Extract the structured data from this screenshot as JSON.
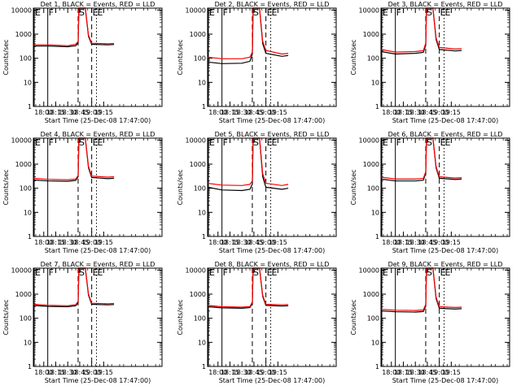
{
  "colors": {
    "events": "#000000",
    "lld": "#ff0000",
    "background": "#ffffff"
  },
  "chart_data": [
    {
      "type": "line",
      "title": "Det 1, BLACK = Events, RED = LLD",
      "xlabel": "Start Time (25-Dec-08 17:47:00)",
      "ylabel": "Counts/sec",
      "yscale": "log",
      "ylim": [
        1,
        12000
      ],
      "xlim_minutes_after_start": [
        0,
        161
      ],
      "xticks": [
        "18:00",
        "18:15",
        "18:30",
        "18:45",
        "19:00",
        "19:15"
      ],
      "yticks": [
        "1",
        "10",
        "100",
        "1000",
        "10000"
      ],
      "markers": [
        {
          "label": "E",
          "style": "solid",
          "time": "17:48"
        },
        {
          "label": "F",
          "style": "solid",
          "time": "18:05"
        },
        {
          "label": "S",
          "style": "dashed",
          "time": "18:43"
        },
        {
          "label": "E",
          "style": "dashed",
          "time": "19:00"
        },
        {
          "label": "E",
          "style": "dotted",
          "time": "19:06"
        }
      ],
      "series": [
        {
          "name": "Events",
          "color": "#000000",
          "t": [
            "17:47",
            "18:05",
            "18:30",
            "18:40",
            "18:43",
            "18:44",
            "18:52",
            "18:56",
            "19:00",
            "19:20",
            "19:28"
          ],
          "values": [
            320,
            320,
            300,
            330,
            450,
            12000,
            12000,
            800,
            380,
            360,
            370
          ]
        },
        {
          "name": "LLD",
          "color": "#ff0000",
          "t": [
            "17:47",
            "18:05",
            "18:30",
            "18:40",
            "18:43",
            "18:44",
            "18:52",
            "18:56",
            "19:00",
            "19:20",
            "19:28"
          ],
          "values": [
            360,
            360,
            330,
            380,
            500,
            12000,
            12000,
            900,
            420,
            400,
            410
          ]
        }
      ]
    },
    {
      "type": "line",
      "title": "Det 2, BLACK = Events, RED = LLD",
      "xlabel": "Start Time (25-Dec-08 17:47:00)",
      "ylabel": "Counts/sec",
      "yscale": "log",
      "ylim": [
        1,
        12000
      ],
      "xlim_minutes_after_start": [
        0,
        161
      ],
      "xticks": [
        "18:00",
        "18:15",
        "18:30",
        "18:45",
        "19:00",
        "19:15"
      ],
      "yticks": [
        "1",
        "10",
        "100",
        "1000",
        "10000"
      ],
      "markers": [
        {
          "label": "E",
          "style": "solid",
          "time": "17:48"
        },
        {
          "label": "F",
          "style": "solid",
          "time": "18:05"
        },
        {
          "label": "S",
          "style": "dashed",
          "time": "18:43"
        },
        {
          "label": "E",
          "style": "dashed",
          "time": "19:00"
        },
        {
          "label": "E",
          "style": "dotted",
          "time": "19:06"
        }
      ],
      "series": [
        {
          "name": "Events",
          "color": "#000000",
          "t": [
            "17:47",
            "18:05",
            "18:30",
            "18:40",
            "18:43",
            "18:44",
            "18:52",
            "18:56",
            "19:00",
            "19:20",
            "19:28"
          ],
          "values": [
            70,
            60,
            62,
            75,
            150,
            12000,
            12000,
            400,
            160,
            120,
            130
          ]
        },
        {
          "name": "LLD",
          "color": "#ff0000",
          "t": [
            "17:47",
            "18:05",
            "18:30",
            "18:40",
            "18:43",
            "18:44",
            "18:52",
            "18:56",
            "19:00",
            "19:20",
            "19:28"
          ],
          "values": [
            110,
            95,
            95,
            110,
            180,
            12000,
            12000,
            500,
            210,
            150,
            160
          ]
        }
      ]
    },
    {
      "type": "line",
      "title": "Det 3, BLACK = Events, RED = LLD",
      "xlabel": "Start Time (25-Dec-08 17:47:00)",
      "ylabel": "Counts/sec",
      "yscale": "log",
      "ylim": [
        1,
        12000
      ],
      "xlim_minutes_after_start": [
        0,
        161
      ],
      "xticks": [
        "18:00",
        "18:15",
        "18:30",
        "18:45",
        "19:00",
        "19:15"
      ],
      "yticks": [
        "1",
        "10",
        "100",
        "1000",
        "10000"
      ],
      "markers": [
        {
          "label": "E",
          "style": "solid",
          "time": "17:48"
        },
        {
          "label": "F",
          "style": "solid",
          "time": "18:05"
        },
        {
          "label": "S",
          "style": "dashed",
          "time": "18:43"
        },
        {
          "label": "E",
          "style": "dashed",
          "time": "19:00"
        },
        {
          "label": "E",
          "style": "dotted",
          "time": "19:06"
        }
      ],
      "series": [
        {
          "name": "Events",
          "color": "#000000",
          "t": [
            "17:47",
            "18:05",
            "18:30",
            "18:40",
            "18:43",
            "18:44",
            "18:52",
            "18:56",
            "19:00",
            "19:20",
            "19:28"
          ],
          "values": [
            190,
            150,
            160,
            175,
            350,
            12000,
            12000,
            600,
            230,
            200,
            210
          ]
        },
        {
          "name": "LLD",
          "color": "#ff0000",
          "t": [
            "17:47",
            "18:05",
            "18:30",
            "18:40",
            "18:43",
            "18:44",
            "18:52",
            "18:56",
            "19:00",
            "19:20",
            "19:28"
          ],
          "values": [
            230,
            180,
            190,
            205,
            420,
            12000,
            12000,
            700,
            280,
            240,
            250
          ]
        }
      ]
    },
    {
      "type": "line",
      "title": "Det 4, BLACK = Events, RED = LLD",
      "xlabel": "Start Time (25-Dec-08 17:47:00)",
      "ylabel": "Counts/sec",
      "yscale": "log",
      "ylim": [
        1,
        12000
      ],
      "xlim_minutes_after_start": [
        0,
        161
      ],
      "xticks": [
        "18:00",
        "18:15",
        "18:30",
        "18:45",
        "19:00",
        "19:15"
      ],
      "yticks": [
        "1",
        "10",
        "100",
        "1000",
        "10000"
      ],
      "markers": [
        {
          "label": "E",
          "style": "solid",
          "time": "17:48"
        },
        {
          "label": "F",
          "style": "solid",
          "time": "18:05"
        },
        {
          "label": "S",
          "style": "dashed",
          "time": "18:43"
        },
        {
          "label": "E",
          "style": "dashed",
          "time": "19:00"
        },
        {
          "label": "E",
          "style": "dotted",
          "time": "19:06"
        }
      ],
      "series": [
        {
          "name": "Events",
          "color": "#000000",
          "t": [
            "17:47",
            "18:05",
            "18:30",
            "18:40",
            "18:43",
            "18:44",
            "18:52",
            "18:56",
            "19:00",
            "19:20",
            "19:28"
          ],
          "values": [
            220,
            200,
            195,
            210,
            300,
            12000,
            12000,
            700,
            280,
            250,
            260
          ]
        },
        {
          "name": "LLD",
          "color": "#ff0000",
          "t": [
            "17:47",
            "18:05",
            "18:30",
            "18:40",
            "18:43",
            "18:44",
            "18:52",
            "18:56",
            "19:00",
            "19:20",
            "19:28"
          ],
          "values": [
            260,
            235,
            225,
            240,
            340,
            12000,
            12000,
            800,
            320,
            290,
            300
          ]
        }
      ]
    },
    {
      "type": "line",
      "title": "Det 5, BLACK = Events, RED = LLD",
      "xlabel": "Start Time (25-Dec-08 17:47:00)",
      "ylabel": "Counts/sec",
      "yscale": "log",
      "ylim": [
        1,
        12000
      ],
      "xlim_minutes_after_start": [
        0,
        161
      ],
      "xticks": [
        "18:00",
        "18:15",
        "18:30",
        "18:45",
        "19:00",
        "19:15"
      ],
      "yticks": [
        "1",
        "10",
        "100",
        "1000",
        "10000"
      ],
      "markers": [
        {
          "label": "E",
          "style": "solid",
          "time": "17:48"
        },
        {
          "label": "F",
          "style": "solid",
          "time": "18:05"
        },
        {
          "label": "S",
          "style": "dashed",
          "time": "18:43"
        },
        {
          "label": "E",
          "style": "dashed",
          "time": "19:00"
        },
        {
          "label": "E",
          "style": "dotted",
          "time": "19:06"
        }
      ],
      "series": [
        {
          "name": "Events",
          "color": "#000000",
          "t": [
            "17:47",
            "18:05",
            "18:30",
            "18:40",
            "18:43",
            "18:44",
            "18:52",
            "18:56",
            "19:00",
            "19:20",
            "19:28"
          ],
          "values": [
            110,
            85,
            80,
            90,
            150,
            12000,
            12000,
            300,
            110,
            90,
            100
          ]
        },
        {
          "name": "LLD",
          "color": "#ff0000",
          "t": [
            "17:47",
            "18:05",
            "18:30",
            "18:40",
            "18:43",
            "18:44",
            "18:52",
            "18:56",
            "19:00",
            "19:20",
            "19:28"
          ],
          "values": [
            160,
            135,
            130,
            145,
            200,
            12000,
            12000,
            400,
            160,
            130,
            145
          ]
        }
      ]
    },
    {
      "type": "line",
      "title": "Det 6, BLACK = Events, RED = LLD",
      "xlabel": "Start Time (25-Dec-08 17:47:00)",
      "ylabel": "Counts/sec",
      "yscale": "log",
      "ylim": [
        1,
        12000
      ],
      "xlim_minutes_after_start": [
        0,
        161
      ],
      "xticks": [
        "18:00",
        "18:15",
        "18:30",
        "18:45",
        "19:00",
        "19:15"
      ],
      "yticks": [
        "1",
        "10",
        "100",
        "1000",
        "10000"
      ],
      "markers": [
        {
          "label": "E",
          "style": "solid",
          "time": "17:48"
        },
        {
          "label": "F",
          "style": "solid",
          "time": "18:05"
        },
        {
          "label": "S",
          "style": "dashed",
          "time": "18:43"
        },
        {
          "label": "E",
          "style": "dashed",
          "time": "19:00"
        },
        {
          "label": "E",
          "style": "dotted",
          "time": "19:06"
        }
      ],
      "series": [
        {
          "name": "Events",
          "color": "#000000",
          "t": [
            "17:47",
            "18:05",
            "18:30",
            "18:40",
            "18:43",
            "18:44",
            "18:52",
            "18:56",
            "19:00",
            "19:20",
            "19:28"
          ],
          "values": [
            240,
            200,
            200,
            215,
            420,
            12000,
            12000,
            700,
            260,
            230,
            240
          ]
        },
        {
          "name": "LLD",
          "color": "#ff0000",
          "t": [
            "17:47",
            "18:05",
            "18:30",
            "18:40",
            "18:43",
            "18:44",
            "18:52",
            "18:56",
            "19:00",
            "19:20",
            "19:28"
          ],
          "values": [
            290,
            240,
            240,
            255,
            480,
            12000,
            12000,
            800,
            300,
            265,
            275
          ]
        }
      ]
    },
    {
      "type": "line",
      "title": "Det 7, BLACK = Events, RED = LLD",
      "xlabel": "Start Time (25-Dec-08 17:47:00)",
      "ylabel": "Counts/sec",
      "yscale": "log",
      "ylim": [
        1,
        12000
      ],
      "xlim_minutes_after_start": [
        0,
        161
      ],
      "xticks": [
        "18:00",
        "18:15",
        "18:30",
        "18:45",
        "19:00",
        "19:15"
      ],
      "yticks": [
        "1",
        "10",
        "100",
        "1000",
        "10000"
      ],
      "markers": [
        {
          "label": "E",
          "style": "solid",
          "time": "17:48"
        },
        {
          "label": "F",
          "style": "solid",
          "time": "18:05"
        },
        {
          "label": "S",
          "style": "dashed",
          "time": "18:43"
        },
        {
          "label": "E",
          "style": "dashed",
          "time": "19:00"
        },
        {
          "label": "E",
          "style": "dotted",
          "time": "19:06"
        }
      ],
      "series": [
        {
          "name": "Events",
          "color": "#000000",
          "t": [
            "17:47",
            "18:05",
            "18:30",
            "18:40",
            "18:43",
            "18:44",
            "18:52",
            "18:56",
            "19:00",
            "19:20",
            "19:28"
          ],
          "values": [
            340,
            310,
            300,
            330,
            450,
            12000,
            12000,
            900,
            380,
            360,
            370
          ]
        },
        {
          "name": "LLD",
          "color": "#ff0000",
          "t": [
            "17:47",
            "18:05",
            "18:30",
            "18:40",
            "18:43",
            "18:44",
            "18:52",
            "18:56",
            "19:00",
            "19:20",
            "19:28"
          ],
          "values": [
            380,
            345,
            330,
            365,
            500,
            12000,
            12000,
            1000,
            420,
            400,
            410
          ]
        }
      ]
    },
    {
      "type": "line",
      "title": "Det 8, BLACK = Events, RED = LLD",
      "xlabel": "Start Time (25-Dec-08 17:47:00)",
      "ylabel": "Counts/sec",
      "yscale": "log",
      "ylim": [
        1,
        12000
      ],
      "xlim_minutes_after_start": [
        0,
        161
      ],
      "xticks": [
        "18:00",
        "18:15",
        "18:30",
        "18:45",
        "19:00",
        "19:15"
      ],
      "yticks": [
        "1",
        "10",
        "100",
        "1000",
        "10000"
      ],
      "markers": [
        {
          "label": "E",
          "style": "solid",
          "time": "17:48"
        },
        {
          "label": "F",
          "style": "solid",
          "time": "18:05"
        },
        {
          "label": "S",
          "style": "dashed",
          "time": "18:43"
        },
        {
          "label": "E",
          "style": "dashed",
          "time": "19:00"
        },
        {
          "label": "E",
          "style": "dotted",
          "time": "19:06"
        }
      ],
      "series": [
        {
          "name": "Events",
          "color": "#000000",
          "t": [
            "17:47",
            "18:05",
            "18:30",
            "18:40",
            "18:43",
            "18:44",
            "18:52",
            "18:56",
            "19:00",
            "19:20",
            "19:28"
          ],
          "values": [
            300,
            270,
            260,
            275,
            420,
            12000,
            12000,
            800,
            340,
            320,
            330
          ]
        },
        {
          "name": "LLD",
          "color": "#ff0000",
          "t": [
            "17:47",
            "18:05",
            "18:30",
            "18:40",
            "18:43",
            "18:44",
            "18:52",
            "18:56",
            "19:00",
            "19:20",
            "19:28"
          ],
          "values": [
            340,
            300,
            290,
            305,
            470,
            12000,
            12000,
            900,
            380,
            360,
            370
          ]
        }
      ]
    },
    {
      "type": "line",
      "title": "Det 9, BLACK = Events, RED = LLD",
      "xlabel": "Start Time (25-Dec-08 17:47:00)",
      "ylabel": "Counts/sec",
      "yscale": "log",
      "ylim": [
        1,
        12000
      ],
      "xlim_minutes_after_start": [
        0,
        161
      ],
      "xticks": [
        "18:00",
        "18:15",
        "18:30",
        "18:45",
        "19:00",
        "19:15"
      ],
      "yticks": [
        "1",
        "10",
        "100",
        "1000",
        "10000"
      ],
      "markers": [
        {
          "label": "E",
          "style": "solid",
          "time": "17:48"
        },
        {
          "label": "F",
          "style": "solid",
          "time": "18:05"
        },
        {
          "label": "S",
          "style": "dashed",
          "time": "18:43"
        },
        {
          "label": "E",
          "style": "dashed",
          "time": "19:00"
        },
        {
          "label": "E",
          "style": "dotted",
          "time": "19:06"
        }
      ],
      "series": [
        {
          "name": "Events",
          "color": "#000000",
          "t": [
            "17:47",
            "18:05",
            "18:30",
            "18:40",
            "18:43",
            "18:44",
            "18:52",
            "18:56",
            "19:00",
            "19:20",
            "19:28"
          ],
          "values": [
            200,
            185,
            180,
            190,
            320,
            12000,
            12000,
            650,
            260,
            240,
            250
          ]
        },
        {
          "name": "LLD",
          "color": "#ff0000",
          "t": [
            "17:47",
            "18:05",
            "18:30",
            "18:40",
            "18:43",
            "18:44",
            "18:52",
            "18:56",
            "19:00",
            "19:20",
            "19:28"
          ],
          "values": [
            235,
            215,
            210,
            220,
            370,
            12000,
            12000,
            750,
            300,
            280,
            290
          ]
        }
      ]
    }
  ]
}
